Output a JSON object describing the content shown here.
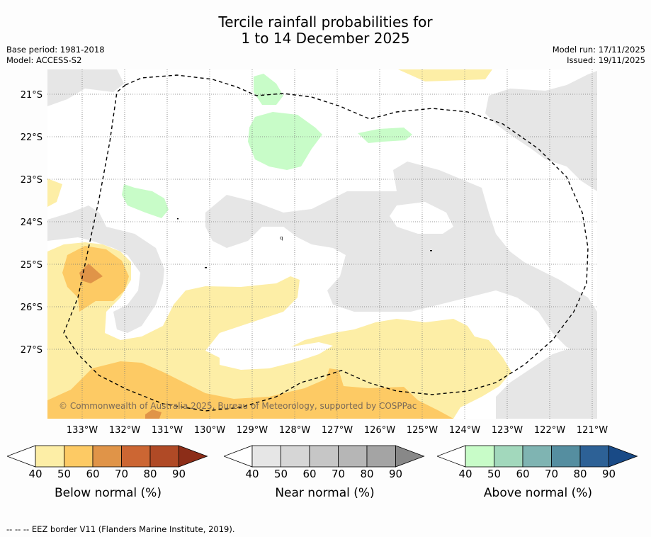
{
  "title": {
    "line1": "Tercile rainfall probabilities for",
    "line2": "1 to 14 December 2025"
  },
  "meta": {
    "base_period": "Base period: 1981-2018",
    "model": "Model: ACCESS-S2",
    "model_run": "Model run: 17/11/2025",
    "issued": "Issued: 19/11/2025"
  },
  "map": {
    "lat_labels": [
      "21°S",
      "22°S",
      "23°S",
      "24°S",
      "25°S",
      "26°S",
      "27°S"
    ],
    "lon_labels": [
      "133°W",
      "132°W",
      "131°W",
      "130°W",
      "129°W",
      "128°W",
      "127°W",
      "126°W",
      "125°W",
      "124°W",
      "123°W",
      "122°W",
      "121°W"
    ],
    "copyright": "© Commonwealth of Australia 2025, Bureau of Meteorology, supported by COSPPac",
    "island_label": "q"
  },
  "colorbars": [
    {
      "label": "Below normal (%)",
      "ticks": [
        "40",
        "50",
        "60",
        "70",
        "80",
        "90"
      ],
      "colors": [
        "#ffffff",
        "#fdeea6",
        "#fdca64",
        "#e09448",
        "#cc6633",
        "#b04a26",
        "#8c2d18"
      ]
    },
    {
      "label": "Near normal (%)",
      "ticks": [
        "40",
        "50",
        "60",
        "70",
        "80",
        "90"
      ],
      "colors": [
        "#ffffff",
        "#e6e6e6",
        "#d6d6d6",
        "#c6c6c6",
        "#b6b6b6",
        "#a4a4a4",
        "#888888"
      ]
    },
    {
      "label": "Above normal (%)",
      "ticks": [
        "40",
        "50",
        "60",
        "70",
        "80",
        "90"
      ],
      "colors": [
        "#ffffff",
        "#c8fcc8",
        "#a2d8bc",
        "#7fb4b2",
        "#558ea0",
        "#2d6196",
        "#194a86"
      ]
    }
  ],
  "footer": "--  --  -- EEZ border V11 (Flanders Marine Institute, 2019)."
}
